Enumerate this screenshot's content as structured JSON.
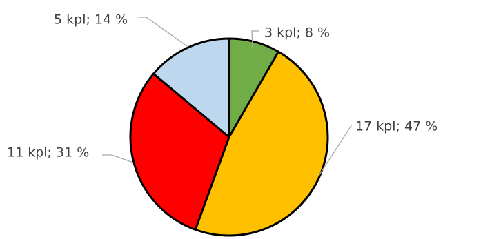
{
  "chart_data": {
    "type": "pie",
    "title": "",
    "slices": [
      {
        "value": 3,
        "percent": 8,
        "label": "3 kpl; 8 %",
        "color": "#70ad47"
      },
      {
        "value": 17,
        "percent": 47,
        "label": "17 kpl; 47 %",
        "color": "#ffc000"
      },
      {
        "value": 11,
        "percent": 31,
        "label": "11 kpl; 31 %",
        "color": "#ff0000"
      },
      {
        "value": 5,
        "percent": 14,
        "label": "5 kpl; 14 %",
        "color": "#bdd7ee"
      }
    ],
    "start": "12 o'clock",
    "direction": "clockwise",
    "legend": "none"
  }
}
